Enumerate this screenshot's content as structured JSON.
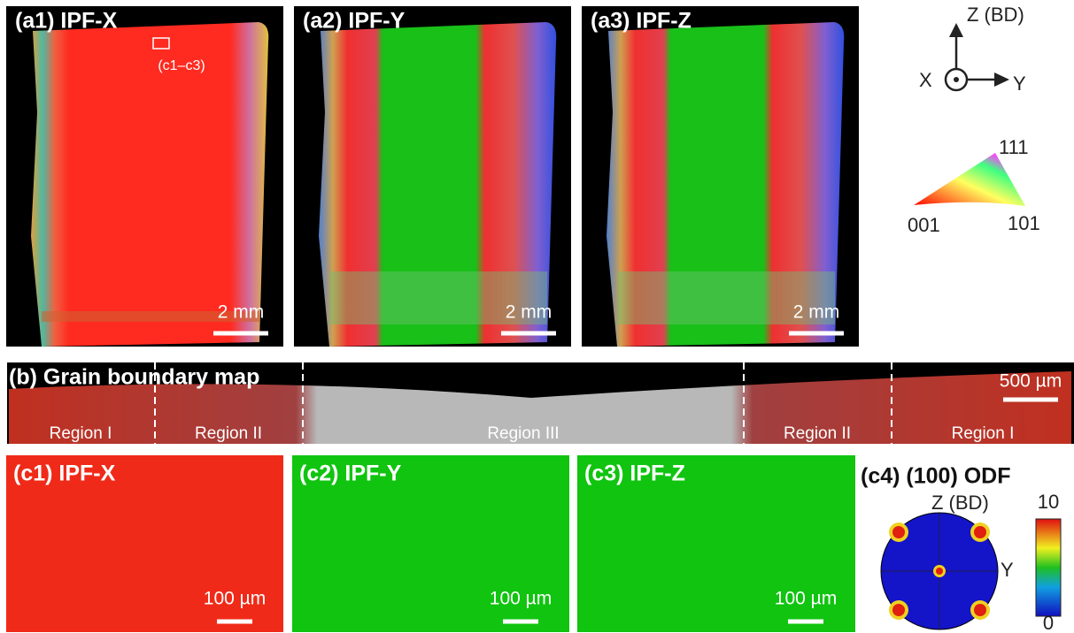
{
  "panels_a": [
    {
      "label": "(a1) IPF-X",
      "scale": "2 mm"
    },
    {
      "label": "(a2) IPF-Y",
      "scale": "2 mm"
    },
    {
      "label": "(a3) IPF-Z",
      "scale": "2 mm"
    }
  ],
  "inset_label": "(c1–c3)",
  "axes": {
    "z": "Z (BD)",
    "x": "X",
    "y": "Y"
  },
  "triangle": {
    "top": "111",
    "left": "001",
    "right": "101"
  },
  "panel_b": {
    "label": "(b) Grain boundary map",
    "scale": "500 µm",
    "regions": [
      "Region I",
      "Region II",
      "Region III",
      "Region II",
      "Region I"
    ]
  },
  "panels_c": [
    {
      "label": "(c1) IPF-X",
      "scale": "100 µm"
    },
    {
      "label": "(c2) IPF-Y",
      "scale": "100 µm"
    },
    {
      "label": "(c3) IPF-Z",
      "scale": "100 µm"
    }
  ],
  "odf": {
    "label": "(c4) (100) ODF",
    "z": "Z (BD)",
    "y": "Y",
    "max": "10",
    "min": "0"
  }
}
